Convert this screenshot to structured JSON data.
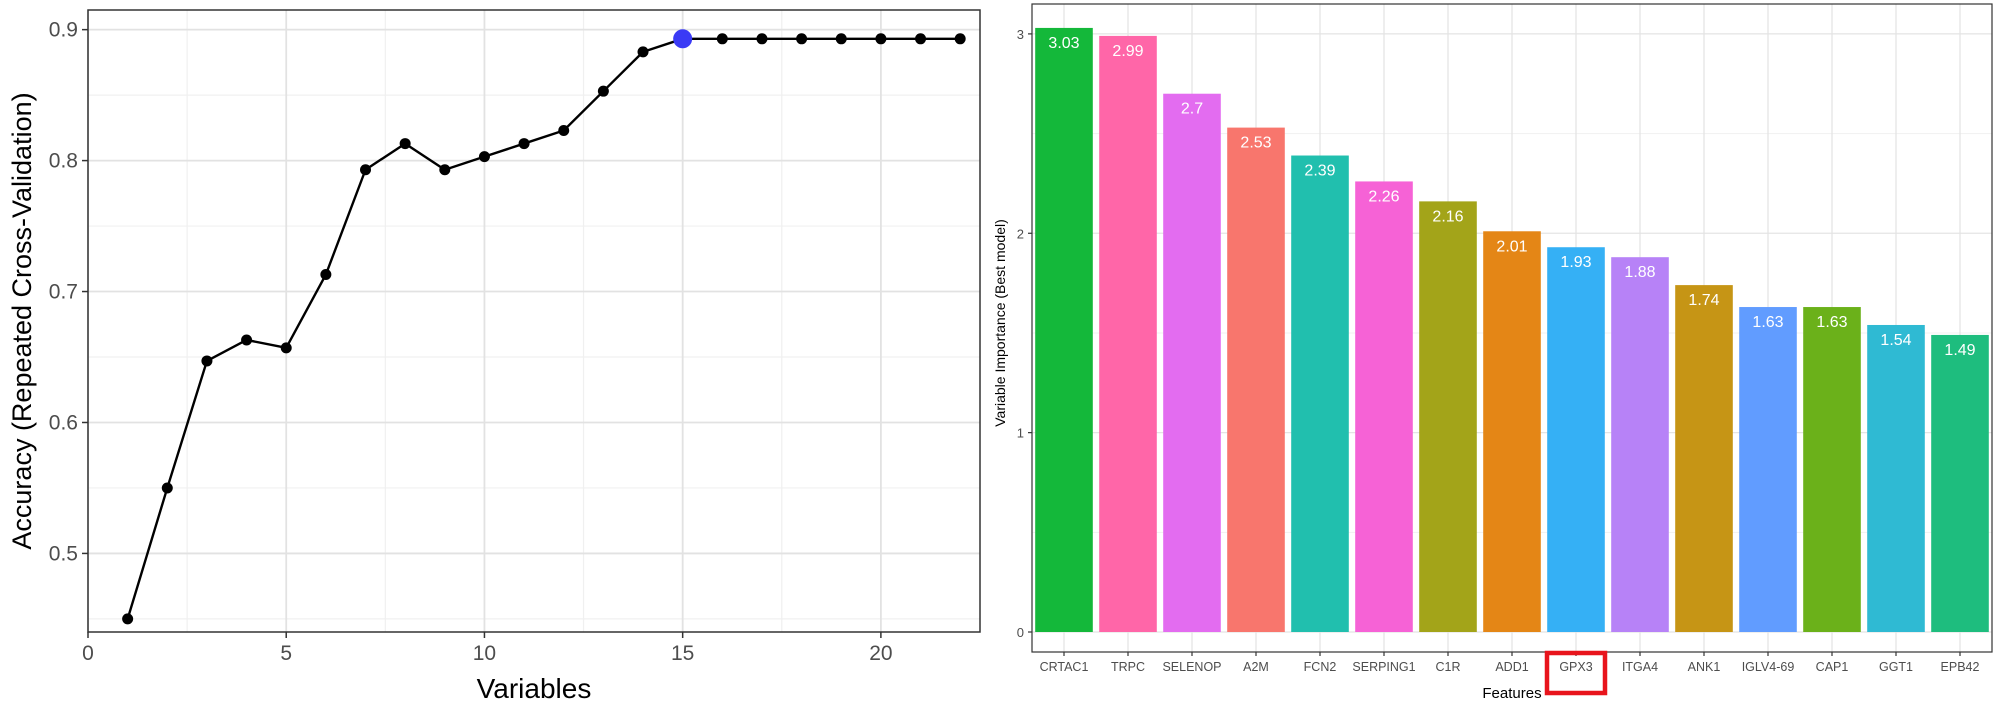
{
  "chart_data": [
    {
      "type": "line",
      "title": "",
      "xlabel": "Variables",
      "ylabel": "Accuracy (Repeated Cross-Validation)",
      "xlim": [
        0,
        22.5
      ],
      "ylim": [
        0.44,
        0.915
      ],
      "x_ticks": [
        0,
        5,
        10,
        15,
        20
      ],
      "y_ticks": [
        0.5,
        0.6,
        0.7,
        0.8,
        0.9
      ],
      "x_tick_labels": [
        "0",
        "5",
        "10",
        "15",
        "20"
      ],
      "y_tick_labels": [
        "0.5",
        "0.6",
        "0.7",
        "0.8",
        "0.9"
      ],
      "grid": true,
      "x": [
        1,
        2,
        3,
        4,
        5,
        6,
        7,
        8,
        9,
        10,
        11,
        12,
        13,
        14,
        15,
        16,
        17,
        18,
        19,
        20,
        21,
        22
      ],
      "y": [
        0.45,
        0.55,
        0.647,
        0.663,
        0.657,
        0.713,
        0.793,
        0.813,
        0.793,
        0.803,
        0.813,
        0.823,
        0.853,
        0.883,
        0.893,
        0.893,
        0.893,
        0.893,
        0.893,
        0.893,
        0.893,
        0.893
      ],
      "highlight": {
        "x": 15,
        "y": 0.893,
        "color": "#3a3af5"
      },
      "line_color": "#000000"
    },
    {
      "type": "bar",
      "title": "",
      "xlabel": "Features",
      "ylabel": "Variable Importance (Best model)",
      "ylim": [
        0,
        3.15
      ],
      "y_ticks": [
        0,
        1,
        2,
        3
      ],
      "y_tick_labels": [
        "0",
        "1",
        "2",
        "3"
      ],
      "grid": true,
      "categories": [
        "CRTAC1",
        "TRPC",
        "SELENOP",
        "A2M",
        "FCN2",
        "SERPING1",
        "C1R",
        "ADD1",
        "GPX3",
        "ITGA4",
        "ANK1",
        "IGLV4-69",
        "CAP1",
        "GGT1",
        "EPB42"
      ],
      "values": [
        3.03,
        2.99,
        2.7,
        2.53,
        2.39,
        2.26,
        2.16,
        2.01,
        1.93,
        1.88,
        1.74,
        1.63,
        1.63,
        1.54,
        1.49
      ],
      "value_labels": [
        "3.03",
        "2.99",
        "2.7",
        "2.53",
        "2.39",
        "2.26",
        "2.16",
        "2.01",
        "1.93",
        "1.88",
        "1.74",
        "1.63",
        "1.63",
        "1.54",
        "1.49"
      ],
      "colors": [
        "#14b83a",
        "#ff66a8",
        "#e36cf0",
        "#f8766d",
        "#21bfae",
        "#f662d6",
        "#a3a419",
        "#e48616",
        "#35b0f5",
        "#b782f7",
        "#c69515",
        "#619cff",
        "#6bb11a",
        "#2fbad3",
        "#1ebd7e"
      ],
      "highlighted_category": "GPX3",
      "highlight_color": "#e8141c"
    }
  ]
}
